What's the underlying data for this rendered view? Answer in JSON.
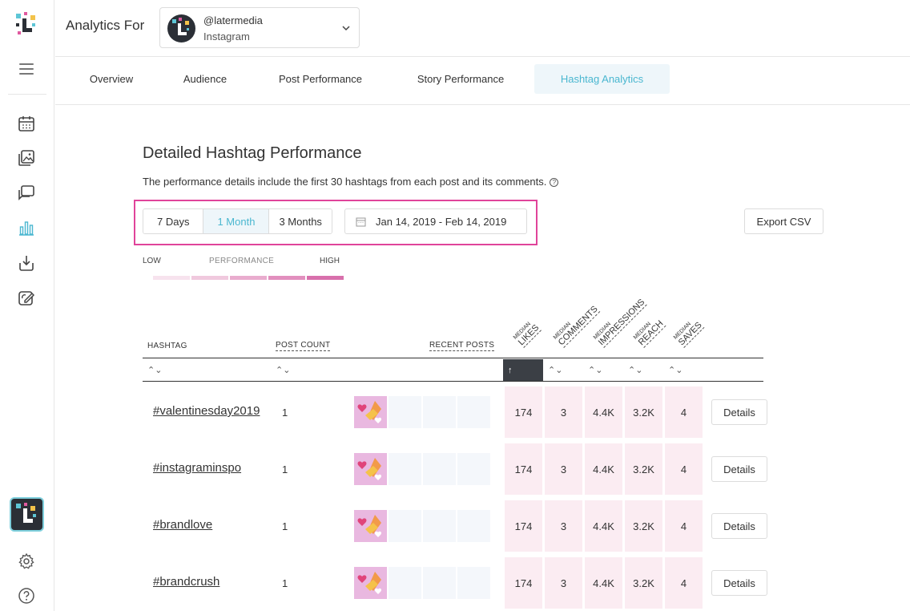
{
  "header": {
    "title": "Analytics For",
    "account": {
      "handle": "@latermedia",
      "platform": "Instagram"
    }
  },
  "sidebar": {
    "icons": [
      "later-logo-icon",
      "menu-icon",
      "calendar-icon",
      "media-library-icon",
      "conversations-icon",
      "analytics-icon",
      "download-icon",
      "link-edit-icon",
      "settings-icon",
      "help-icon"
    ]
  },
  "tabs": [
    {
      "label": "Overview",
      "active": false
    },
    {
      "label": "Audience",
      "active": false
    },
    {
      "label": "Post Performance",
      "active": false
    },
    {
      "label": "Story Performance",
      "active": false
    },
    {
      "label": "Hashtag Analytics",
      "active": true
    }
  ],
  "section": {
    "title": "Detailed Hashtag Performance",
    "description": "The performance details include the first 30 hashtags from each post and its comments.",
    "info_glyph": "?"
  },
  "filters": {
    "ranges": [
      {
        "label": "7 Days",
        "active": false
      },
      {
        "label": "1 Month",
        "active": true
      },
      {
        "label": "3 Months",
        "active": false
      }
    ],
    "date_range": "Jan 14, 2019 - Feb 14, 2019",
    "export_label": "Export CSV"
  },
  "legend": {
    "low": "LOW",
    "performance": "PERFORMANCE",
    "high": "HIGH",
    "colors": [
      "#f7e3ee",
      "#f0c9de",
      "#e9acce",
      "#e28fbe",
      "#d870ac"
    ]
  },
  "table": {
    "columns": {
      "hashtag": "HASHTAG",
      "post_count": "POST COUNT",
      "recent_posts": "RECENT POSTS",
      "median": "MEDIAN",
      "likes": "LIKES",
      "comments": "COMMENTS",
      "impressions": "IMPRESSIONS",
      "reach": "REACH",
      "saves": "SAVES"
    },
    "sort_glyph": "⌃⌄",
    "active_sort_glyph": "↑",
    "details_label": "Details",
    "rows": [
      {
        "hashtag": "#valentinesday2019",
        "post_count": "1",
        "likes": "174",
        "comments": "3",
        "impressions": "4.4K",
        "reach": "3.2K",
        "saves": "4"
      },
      {
        "hashtag": "#instagraminspo",
        "post_count": "1",
        "likes": "174",
        "comments": "3",
        "impressions": "4.4K",
        "reach": "3.2K",
        "saves": "4"
      },
      {
        "hashtag": "#brandlove",
        "post_count": "1",
        "likes": "174",
        "comments": "3",
        "impressions": "4.4K",
        "reach": "3.2K",
        "saves": "4"
      },
      {
        "hashtag": "#brandcrush",
        "post_count": "1",
        "likes": "174",
        "comments": "3",
        "impressions": "4.4K",
        "reach": "3.2K",
        "saves": "4"
      }
    ]
  }
}
